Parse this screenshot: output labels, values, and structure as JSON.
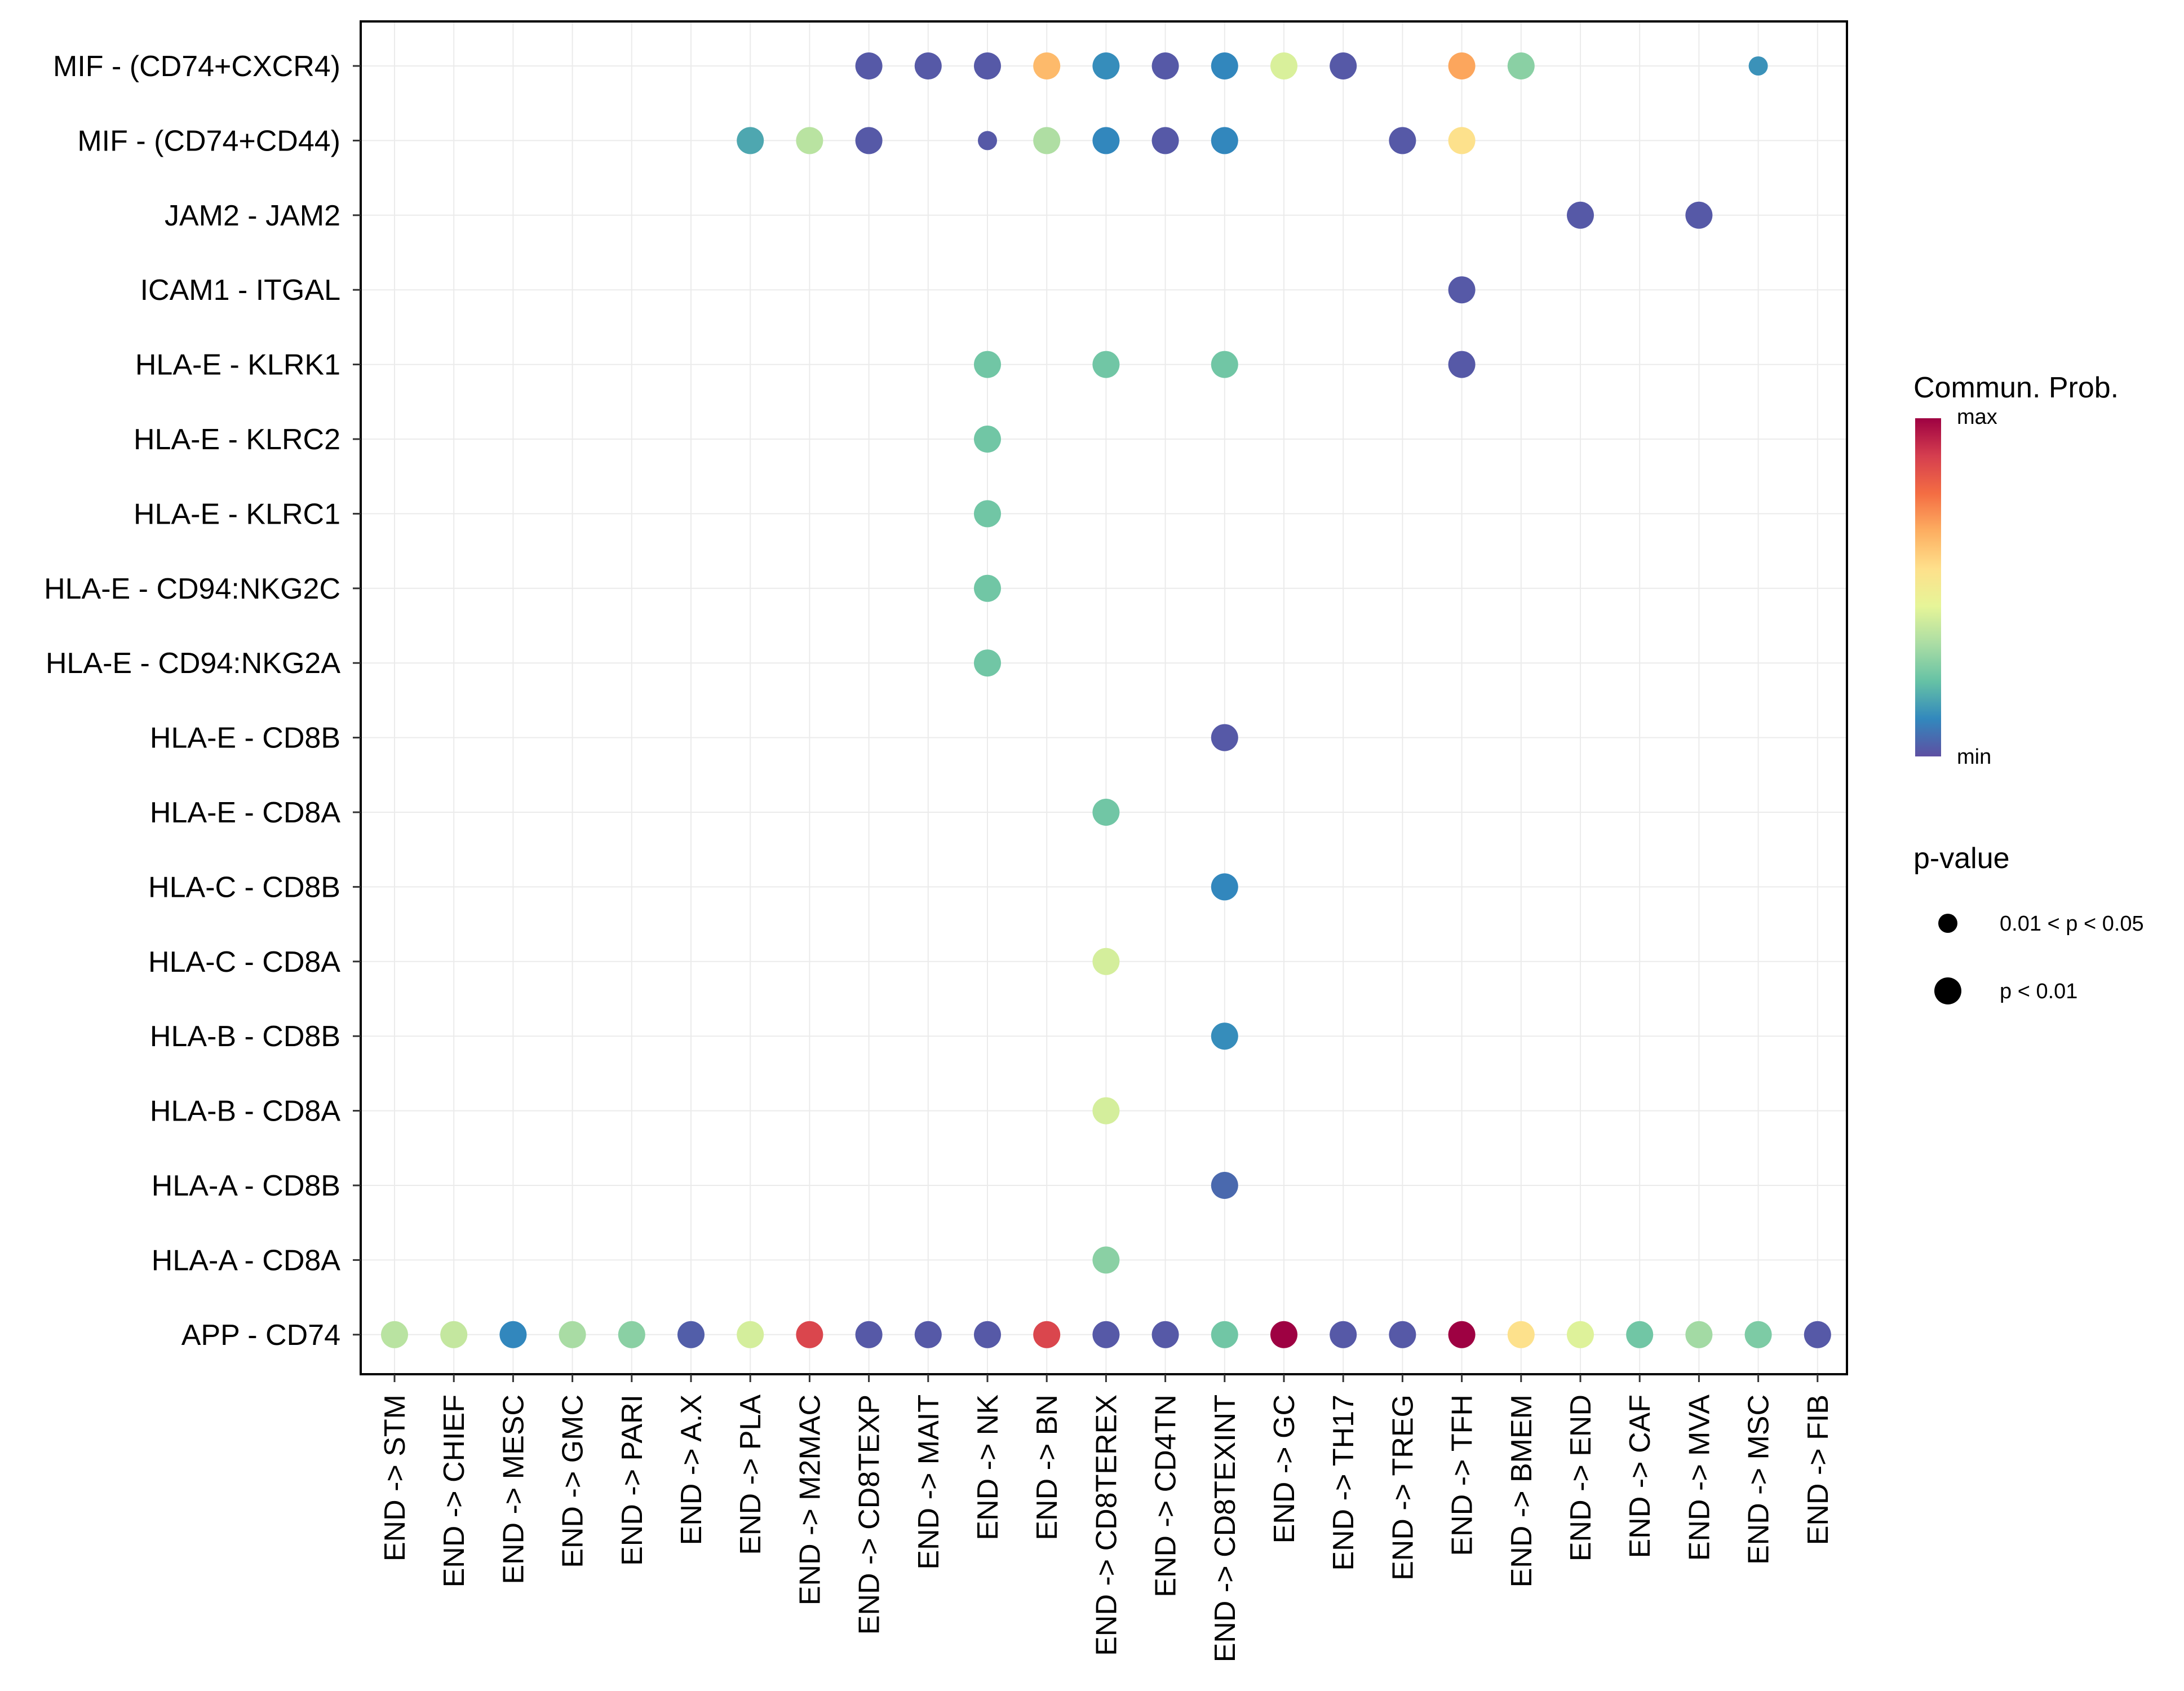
{
  "chart_data": {
    "type": "dotplot",
    "title": "",
    "xlabel": "",
    "ylabel": "",
    "x_categories": [
      "END -> STM",
      "END -> CHIEF",
      "END -> MESC",
      "END -> GMC",
      "END -> PARI",
      "END -> A.X",
      "END -> PLA",
      "END -> M2MAC",
      "END -> CD8TEXP",
      "END -> MAIT",
      "END -> NK",
      "END -> BN",
      "END -> CD8TEREX",
      "END -> CD4TN",
      "END -> CD8TEXINT",
      "END -> GC",
      "END -> TH17",
      "END -> TREG",
      "END -> TFH",
      "END -> BMEM",
      "END -> END",
      "END -> CAF",
      "END -> MVA",
      "END -> MSC",
      "END -> FIB"
    ],
    "y_categories": [
      "MIF - (CD74+CXCR4)",
      "MIF - (CD74+CD44)",
      "JAM2 - JAM2",
      "ICAM1 - ITGAL",
      "HLA-E - KLRK1",
      "HLA-E - KLRC2",
      "HLA-E - KLRC1",
      "HLA-E - CD94:NKG2C",
      "HLA-E - CD94:NKG2A",
      "HLA-E - CD8B",
      "HLA-E - CD8A",
      "HLA-C - CD8B",
      "HLA-C - CD8A",
      "HLA-B - CD8B",
      "HLA-B - CD8A",
      "HLA-A - CD8B",
      "HLA-A - CD8A",
      "APP - CD74"
    ],
    "color_scale": {
      "title": "Commun. Prob.",
      "min_label": "min",
      "max_label": "max",
      "stops": [
        "#5E4FA2",
        "#3288BD",
        "#66C2A5",
        "#ABDDA4",
        "#E6F598",
        "#FEE08B",
        "#FDAE61",
        "#F46D43",
        "#D53E4F",
        "#9E0142"
      ]
    },
    "size_legend": {
      "title": "p-value",
      "entries": [
        {
          "label": "0.01 < p < 0.05",
          "level": 1
        },
        {
          "label": "p < 0.01",
          "level": 2
        }
      ]
    },
    "points": [
      {
        "y": "MIF - (CD74+CXCR4)",
        "x": "END -> CD8TEXP",
        "prob": 0.02,
        "pval_level": 2
      },
      {
        "y": "MIF - (CD74+CXCR4)",
        "x": "END -> MAIT",
        "prob": 0.02,
        "pval_level": 2
      },
      {
        "y": "MIF - (CD74+CXCR4)",
        "x": "END -> NK",
        "prob": 0.02,
        "pval_level": 2
      },
      {
        "y": "MIF - (CD74+CXCR4)",
        "x": "END -> BN",
        "prob": 0.64,
        "pval_level": 2
      },
      {
        "y": "MIF - (CD74+CXCR4)",
        "x": "END -> CD8TEREX",
        "prob": 0.12,
        "pval_level": 2
      },
      {
        "y": "MIF - (CD74+CXCR4)",
        "x": "END -> CD4TN",
        "prob": 0.02,
        "pval_level": 2
      },
      {
        "y": "MIF - (CD74+CXCR4)",
        "x": "END -> CD8TEXINT",
        "prob": 0.11,
        "pval_level": 2
      },
      {
        "y": "MIF - (CD74+CXCR4)",
        "x": "END -> GC",
        "prob": 0.42,
        "pval_level": 2
      },
      {
        "y": "MIF - (CD74+CXCR4)",
        "x": "END -> TH17",
        "prob": 0.02,
        "pval_level": 2
      },
      {
        "y": "MIF - (CD74+CXCR4)",
        "x": "END -> TFH",
        "prob": 0.68,
        "pval_level": 2
      },
      {
        "y": "MIF - (CD74+CXCR4)",
        "x": "END -> BMEM",
        "prob": 0.28,
        "pval_level": 2
      },
      {
        "y": "MIF - (CD74+CXCR4)",
        "x": "END -> MSC",
        "prob": 0.13,
        "pval_level": 1
      },
      {
        "y": "MIF - (CD74+CD44)",
        "x": "END -> PLA",
        "prob": 0.17,
        "pval_level": 2
      },
      {
        "y": "MIF - (CD74+CD44)",
        "x": "END -> M2MAC",
        "prob": 0.36,
        "pval_level": 2
      },
      {
        "y": "MIF - (CD74+CD44)",
        "x": "END -> CD8TEXP",
        "prob": 0.02,
        "pval_level": 2
      },
      {
        "y": "MIF - (CD74+CD44)",
        "x": "END -> NK",
        "prob": 0.02,
        "pval_level": 1
      },
      {
        "y": "MIF - (CD74+CD44)",
        "x": "END -> BN",
        "prob": 0.34,
        "pval_level": 2
      },
      {
        "y": "MIF - (CD74+CD44)",
        "x": "END -> CD8TEREX",
        "prob": 0.11,
        "pval_level": 2
      },
      {
        "y": "MIF - (CD74+CD44)",
        "x": "END -> CD4TN",
        "prob": 0.02,
        "pval_level": 2
      },
      {
        "y": "MIF - (CD74+CD44)",
        "x": "END -> CD8TEXINT",
        "prob": 0.11,
        "pval_level": 2
      },
      {
        "y": "MIF - (CD74+CD44)",
        "x": "END -> TREG",
        "prob": 0.02,
        "pval_level": 2
      },
      {
        "y": "MIF - (CD74+CD44)",
        "x": "END -> TFH",
        "prob": 0.55,
        "pval_level": 2
      },
      {
        "y": "JAM2 - JAM2",
        "x": "END -> END",
        "prob": 0.02,
        "pval_level": 2
      },
      {
        "y": "JAM2 - JAM2",
        "x": "END -> MVA",
        "prob": 0.02,
        "pval_level": 2
      },
      {
        "y": "ICAM1 - ITGAL",
        "x": "END -> TFH",
        "prob": 0.02,
        "pval_level": 2
      },
      {
        "y": "HLA-E - KLRK1",
        "x": "END -> NK",
        "prob": 0.24,
        "pval_level": 2
      },
      {
        "y": "HLA-E - KLRK1",
        "x": "END -> CD8TEREX",
        "prob": 0.24,
        "pval_level": 2
      },
      {
        "y": "HLA-E - KLRK1",
        "x": "END -> CD8TEXINT",
        "prob": 0.24,
        "pval_level": 2
      },
      {
        "y": "HLA-E - KLRK1",
        "x": "END -> TFH",
        "prob": 0.02,
        "pval_level": 2
      },
      {
        "y": "HLA-E - KLRC2",
        "x": "END -> NK",
        "prob": 0.24,
        "pval_level": 2
      },
      {
        "y": "HLA-E - KLRC1",
        "x": "END -> NK",
        "prob": 0.24,
        "pval_level": 2
      },
      {
        "y": "HLA-E - CD94:NKG2C",
        "x": "END -> NK",
        "prob": 0.24,
        "pval_level": 2
      },
      {
        "y": "HLA-E - CD94:NKG2A",
        "x": "END -> NK",
        "prob": 0.24,
        "pval_level": 2
      },
      {
        "y": "HLA-E - CD8B",
        "x": "END -> CD8TEXINT",
        "prob": 0.02,
        "pval_level": 2
      },
      {
        "y": "HLA-E - CD8A",
        "x": "END -> CD8TEREX",
        "prob": 0.24,
        "pval_level": 2
      },
      {
        "y": "HLA-C - CD8B",
        "x": "END -> CD8TEXINT",
        "prob": 0.11,
        "pval_level": 2
      },
      {
        "y": "HLA-C - CD8A",
        "x": "END -> CD8TEREX",
        "prob": 0.41,
        "pval_level": 2
      },
      {
        "y": "HLA-B - CD8B",
        "x": "END -> CD8TEXINT",
        "prob": 0.12,
        "pval_level": 2
      },
      {
        "y": "HLA-B - CD8A",
        "x": "END -> CD8TEREX",
        "prob": 0.41,
        "pval_level": 2
      },
      {
        "y": "HLA-A - CD8B",
        "x": "END -> CD8TEXINT",
        "prob": 0.05,
        "pval_level": 2
      },
      {
        "y": "HLA-A - CD8A",
        "x": "END -> CD8TEREX",
        "prob": 0.28,
        "pval_level": 2
      },
      {
        "y": "APP - CD74",
        "x": "END -> STM",
        "prob": 0.36,
        "pval_level": 2
      },
      {
        "y": "APP - CD74",
        "x": "END -> CHIEF",
        "prob": 0.38,
        "pval_level": 2
      },
      {
        "y": "APP - CD74",
        "x": "END -> MESC",
        "prob": 0.11,
        "pval_level": 2
      },
      {
        "y": "APP - CD74",
        "x": "END -> GMC",
        "prob": 0.33,
        "pval_level": 2
      },
      {
        "y": "APP - CD74",
        "x": "END -> PARI",
        "prob": 0.28,
        "pval_level": 2
      },
      {
        "y": "APP - CD74",
        "x": "END -> A.X",
        "prob": 0.03,
        "pval_level": 2
      },
      {
        "y": "APP - CD74",
        "x": "END -> PLA",
        "prob": 0.41,
        "pval_level": 2
      },
      {
        "y": "APP - CD74",
        "x": "END -> M2MAC",
        "prob": 0.87,
        "pval_level": 2
      },
      {
        "y": "APP - CD74",
        "x": "END -> CD8TEXP",
        "prob": 0.02,
        "pval_level": 2
      },
      {
        "y": "APP - CD74",
        "x": "END -> MAIT",
        "prob": 0.02,
        "pval_level": 2
      },
      {
        "y": "APP - CD74",
        "x": "END -> NK",
        "prob": 0.02,
        "pval_level": 2
      },
      {
        "y": "APP - CD74",
        "x": "END -> BN",
        "prob": 0.87,
        "pval_level": 2
      },
      {
        "y": "APP - CD74",
        "x": "END -> CD8TEREX",
        "prob": 0.02,
        "pval_level": 2
      },
      {
        "y": "APP - CD74",
        "x": "END -> CD4TN",
        "prob": 0.02,
        "pval_level": 2
      },
      {
        "y": "APP - CD74",
        "x": "END -> CD8TEXINT",
        "prob": 0.24,
        "pval_level": 2
      },
      {
        "y": "APP - CD74",
        "x": "END -> GC",
        "prob": 1.0,
        "pval_level": 2
      },
      {
        "y": "APP - CD74",
        "x": "END -> TH17",
        "prob": 0.02,
        "pval_level": 2
      },
      {
        "y": "APP - CD74",
        "x": "END -> TREG",
        "prob": 0.02,
        "pval_level": 2
      },
      {
        "y": "APP - CD74",
        "x": "END -> TFH",
        "prob": 1.0,
        "pval_level": 2
      },
      {
        "y": "APP - CD74",
        "x": "END -> BMEM",
        "prob": 0.55,
        "pval_level": 2
      },
      {
        "y": "APP - CD74",
        "x": "END -> END",
        "prob": 0.43,
        "pval_level": 2
      },
      {
        "y": "APP - CD74",
        "x": "END -> CAF",
        "prob": 0.24,
        "pval_level": 2
      },
      {
        "y": "APP - CD74",
        "x": "END -> MVA",
        "prob": 0.32,
        "pval_level": 2
      },
      {
        "y": "APP - CD74",
        "x": "END -> MSC",
        "prob": 0.26,
        "pval_level": 2
      },
      {
        "y": "APP - CD74",
        "x": "END -> FIB",
        "prob": 0.02,
        "pval_level": 2
      }
    ]
  }
}
